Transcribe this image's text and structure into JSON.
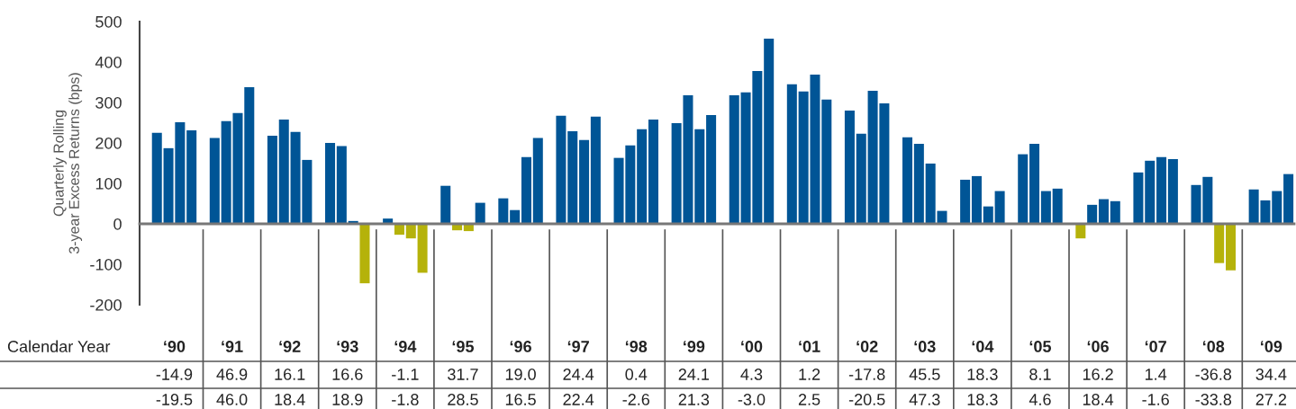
{
  "chart_data": {
    "type": "bar",
    "ylabel": "Quarterly Rolling\n3-year Excess Returns (bps)",
    "categories": [
      null,
      null,
      null,
      null,
      null,
      null,
      null,
      null,
      null,
      null,
      null,
      null,
      null,
      null,
      null,
      null,
      null,
      null,
      null,
      null,
      null,
      null,
      null,
      null,
      null,
      null,
      null,
      null,
      null,
      null,
      null,
      null,
      null,
      null,
      null,
      null,
      null,
      null,
      null,
      null,
      null,
      null,
      null,
      null,
      null,
      null,
      null,
      null,
      null,
      null,
      null,
      null,
      null,
      null,
      null,
      null,
      null,
      null,
      null,
      null,
      null,
      null,
      null,
      null,
      null,
      null,
      null,
      null,
      null,
      null,
      null,
      null,
      null,
      null,
      null,
      null,
      null,
      null,
      null,
      null,
      null,
      null,
      null,
      null,
      null,
      null,
      null,
      null,
      null,
      null,
      null,
      null,
      null,
      null,
      null,
      null,
      null,
      null,
      null,
      null
    ],
    "values": [
      null,
      225,
      187,
      251,
      231,
      null,
      212,
      254,
      274,
      338,
      null,
      218,
      258,
      227,
      158,
      null,
      200,
      192,
      7,
      -147,
      null,
      13,
      -27,
      -36,
      -121,
      null,
      94,
      -16,
      -18,
      52,
      null,
      63,
      34,
      165,
      212,
      null,
      267,
      229,
      207,
      265,
      null,
      163,
      194,
      234,
      258,
      null,
      249,
      318,
      234,
      269,
      null,
      318,
      325,
      378,
      458,
      null,
      345,
      327,
      369,
      307,
      null,
      280,
      223,
      329,
      298,
      null,
      214,
      198,
      149,
      32,
      null,
      109,
      118,
      43,
      81,
      null,
      172,
      198,
      81,
      87,
      null,
      -36,
      47,
      61,
      56,
      null,
      127,
      156,
      165,
      160,
      null,
      96,
      116,
      -97,
      -115,
      null,
      85,
      58,
      81,
      123
    ],
    "colors": [
      null,
      "#005596",
      "#005596",
      "#005596",
      "#005596",
      null,
      "#005596",
      "#005596",
      "#005596",
      "#005596",
      null,
      "#005596",
      "#005596",
      "#005596",
      "#005596",
      null,
      "#005596",
      "#005596",
      "#005596",
      "#b5b20a",
      null,
      "#005596",
      "#b5b20a",
      "#b5b20a",
      "#b5b20a",
      null,
      "#005596",
      "#b5b20a",
      "#b5b20a",
      "#005596",
      null,
      "#005596",
      "#005596",
      "#005596",
      "#005596",
      null,
      "#005596",
      "#005596",
      "#005596",
      "#005596",
      null,
      "#005596",
      "#005596",
      "#005596",
      "#005596",
      null,
      "#005596",
      "#005596",
      "#005596",
      "#005596",
      null,
      "#005596",
      "#005596",
      "#005596",
      "#005596",
      null,
      "#005596",
      "#005596",
      "#005596",
      "#005596",
      null,
      "#005596",
      "#005596",
      "#005596",
      "#005596",
      null,
      "#005596",
      "#005596",
      "#005596",
      "#005596",
      null,
      "#005596",
      "#005596",
      "#005596",
      "#005596",
      null,
      "#005596",
      "#005596",
      "#005596",
      "#005596",
      null,
      "#b5b20a",
      "#005596",
      "#005596",
      "#005596",
      null,
      "#005596",
      "#005596",
      "#005596",
      "#005596",
      null,
      "#005596",
      "#005596",
      "#b5b20a",
      "#b5b20a",
      null,
      "#005596",
      "#005596",
      "#005596",
      "#005596"
    ],
    "ylim": [
      -200,
      500
    ],
    "yticks": [
      -200,
      -100,
      0,
      100,
      200,
      300,
      400,
      500
    ],
    "annotations": [
      "Calendar Year",
      "‘90",
      "‘91",
      "‘92",
      "‘93",
      "‘94",
      "‘95",
      "‘96",
      "‘97",
      "‘98",
      "‘99",
      "‘00",
      "‘01",
      "‘02",
      "‘03",
      "‘04",
      "‘05",
      "‘06",
      "‘07",
      "‘08",
      "‘09",
      "-14.9",
      "46.9",
      "16.1",
      "16.6",
      "-1.1",
      "31.7",
      "19.0",
      "24.4",
      "0.4",
      "24.1",
      "4.3",
      "1.2",
      "-17.8",
      "45.5",
      "18.3",
      "8.1",
      "16.2",
      "1.4",
      "-36.8",
      "34.4",
      "-19.5",
      "46.0",
      "18.4",
      "18.9",
      "-1.8",
      "28.5",
      "16.5",
      "22.4",
      "-2.6",
      "21.3",
      "-3.0",
      "2.5",
      "-20.5",
      "47.3",
      "18.3",
      "4.6",
      "18.4",
      "-1.6",
      "-33.8",
      "27.2"
    ]
  }
}
